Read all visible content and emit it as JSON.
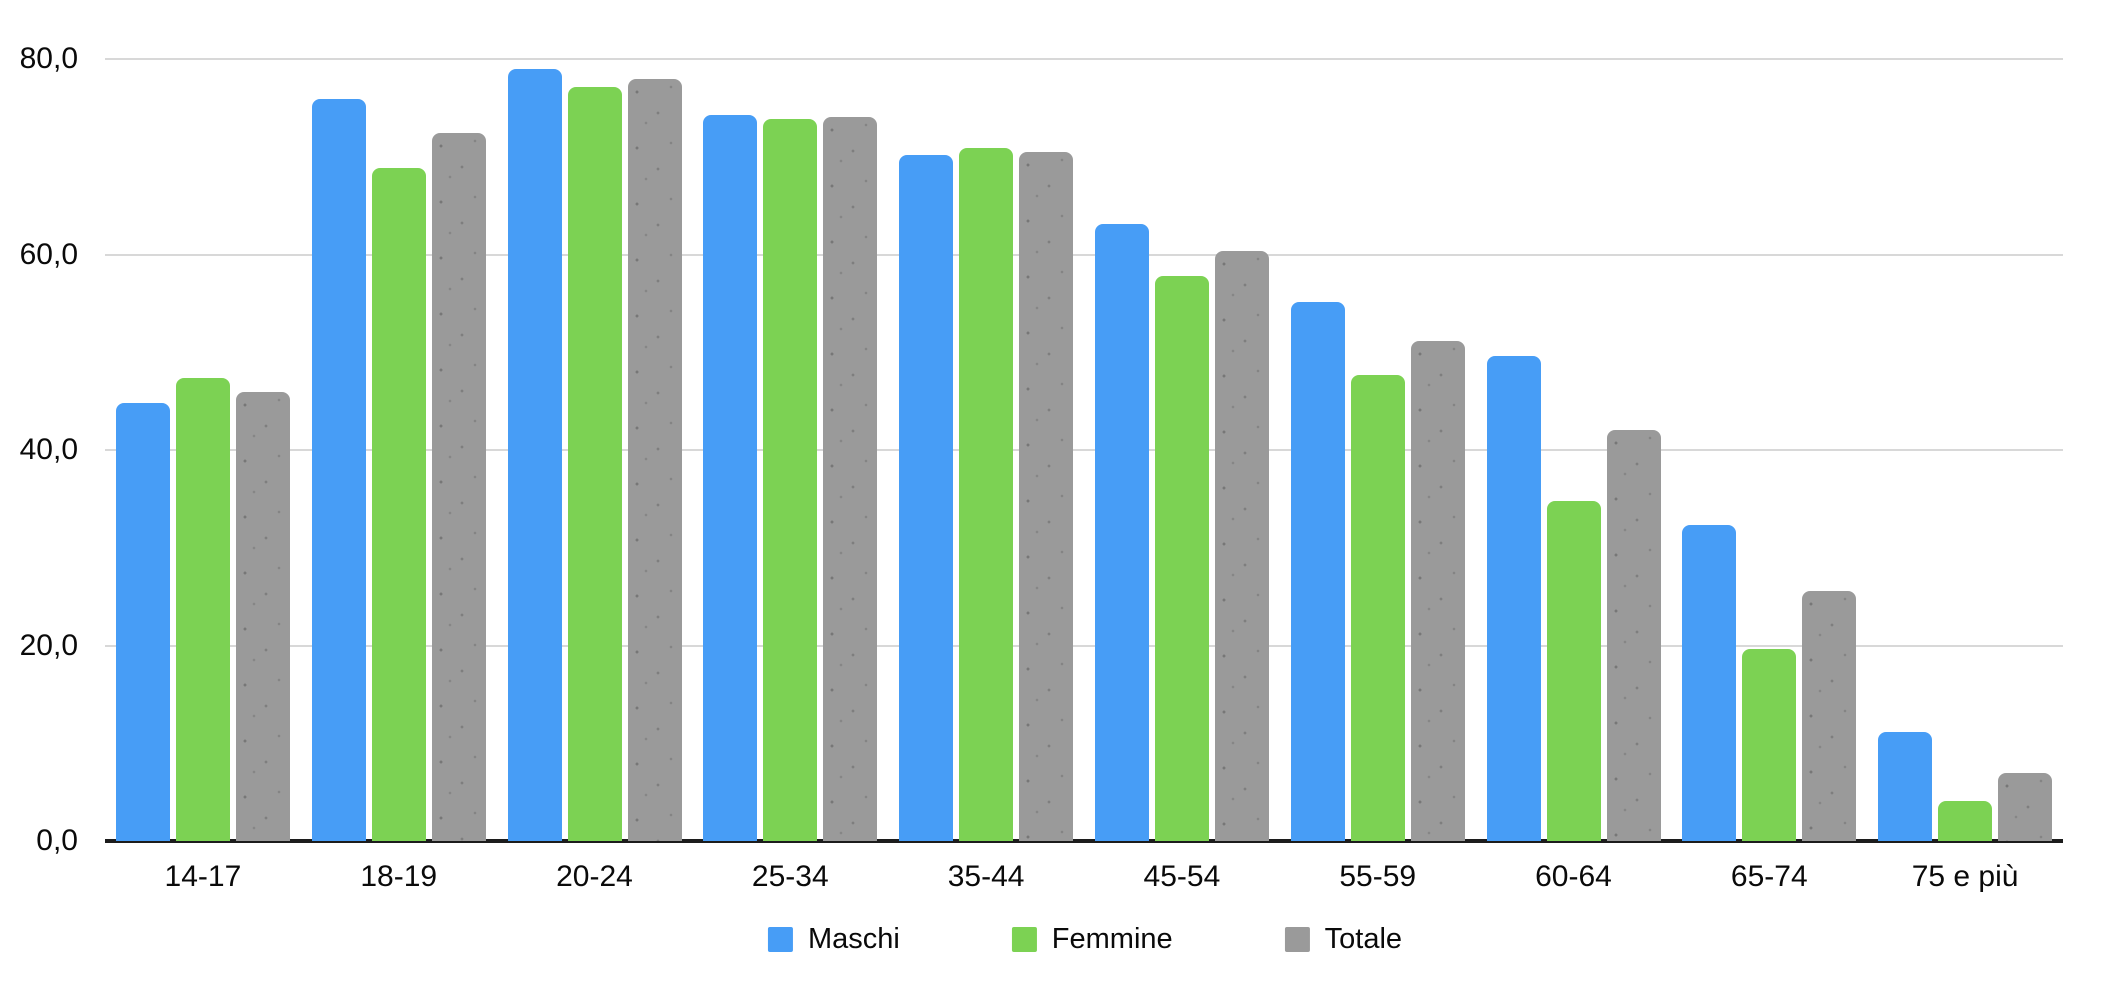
{
  "chart_data": {
    "type": "bar",
    "title": "",
    "categories": [
      "14-17",
      "18-19",
      "20-24",
      "25-34",
      "35-44",
      "45-54",
      "55-59",
      "60-64",
      "65-74",
      "75 e più"
    ],
    "series": [
      {
        "name": "Maschi",
        "color": "#479DF6",
        "textured": false,
        "values": [
          44.8,
          75.9,
          79.0,
          74.3,
          70.2,
          63.1,
          55.1,
          49.6,
          32.3,
          11.2
        ]
      },
      {
        "name": "Femmine",
        "color": "#7CD253",
        "textured": false,
        "values": [
          47.4,
          68.9,
          77.1,
          73.9,
          70.9,
          57.8,
          47.7,
          34.8,
          19.6,
          4.1
        ]
      },
      {
        "name": "Totale",
        "color": "#9A9A9A",
        "textured": true,
        "values": [
          45.9,
          72.4,
          78.0,
          74.1,
          70.5,
          60.4,
          51.2,
          42.1,
          25.6,
          7.0
        ]
      }
    ],
    "ylim": [
      0,
      80
    ],
    "yticks": [
      {
        "value": 80,
        "label": "80,0"
      },
      {
        "value": 60,
        "label": "60,0"
      },
      {
        "value": 40,
        "label": "40,0"
      },
      {
        "value": 20,
        "label": "20,0"
      },
      {
        "value": 0,
        "label": "0,0"
      }
    ],
    "grid": true,
    "gridline_color": "#d8d8d8",
    "axis_line_color": "#1c1c1c",
    "legend_position": "bottom"
  }
}
